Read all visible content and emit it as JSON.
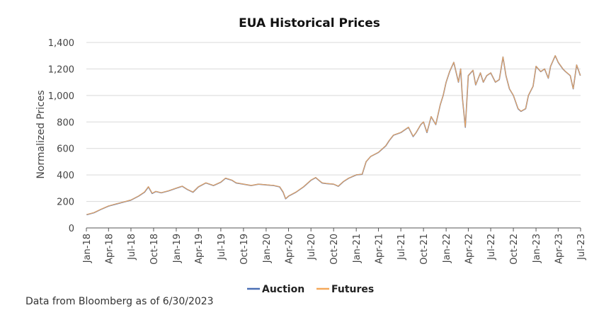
{
  "footnote": "Data from Bloomberg as of 6/30/2023",
  "colors": {
    "auction": "#4a6fb5",
    "futures": "#f5a85a",
    "grid": "#d9d9d9",
    "axis": "#555555"
  },
  "chart_data": {
    "type": "line",
    "title": "EUA Historical Prices",
    "xlabel": "",
    "ylabel": "Normalized Prices",
    "ylim": [
      0,
      1400
    ],
    "yticks": [
      "0",
      "200",
      "400",
      "600",
      "800",
      "1,000",
      "1,200",
      "1,400"
    ],
    "ytick_values": [
      0,
      200,
      400,
      600,
      800,
      1000,
      1200,
      1400
    ],
    "xticks": [
      "Jan-18",
      "Apr-18",
      "Jul-18",
      "Oct-18",
      "Jan-19",
      "Apr-19",
      "Jul-19",
      "Oct-19",
      "Jan-20",
      "Apr-20",
      "Jul-20",
      "Oct-20",
      "Jan-21",
      "Apr-21",
      "Jul-21",
      "Oct-21",
      "Jan-22",
      "Apr-22",
      "Jul-22",
      "Oct-22",
      "Jan-23",
      "Apr-23",
      "Jul-23"
    ],
    "xtick_dates": [
      "2018-01-01",
      "2018-04-01",
      "2018-07-01",
      "2018-10-01",
      "2019-01-01",
      "2019-04-01",
      "2019-07-01",
      "2019-10-01",
      "2020-01-01",
      "2020-04-01",
      "2020-07-01",
      "2020-10-01",
      "2021-01-01",
      "2021-04-01",
      "2021-07-01",
      "2021-10-01",
      "2022-01-01",
      "2022-04-01",
      "2022-07-01",
      "2022-10-01",
      "2023-01-01",
      "2023-04-01",
      "2023-07-01"
    ],
    "grid": true,
    "legend": "bottom",
    "x": [
      "2018-01-02",
      "2018-02-01",
      "2018-03-01",
      "2018-04-01",
      "2018-05-01",
      "2018-06-01",
      "2018-07-01",
      "2018-08-01",
      "2018-08-25",
      "2018-09-10",
      "2018-09-25",
      "2018-10-10",
      "2018-11-01",
      "2018-12-01",
      "2019-01-01",
      "2019-01-25",
      "2019-02-15",
      "2019-03-10",
      "2019-04-01",
      "2019-05-01",
      "2019-06-01",
      "2019-07-01",
      "2019-07-20",
      "2019-08-15",
      "2019-09-01",
      "2019-10-01",
      "2019-11-01",
      "2019-12-01",
      "2020-01-01",
      "2020-02-01",
      "2020-02-25",
      "2020-03-10",
      "2020-03-20",
      "2020-04-01",
      "2020-05-01",
      "2020-06-01",
      "2020-07-01",
      "2020-07-20",
      "2020-08-15",
      "2020-09-01",
      "2020-10-01",
      "2020-10-20",
      "2020-11-10",
      "2020-12-01",
      "2021-01-01",
      "2021-01-25",
      "2021-02-10",
      "2021-03-01",
      "2021-04-01",
      "2021-05-01",
      "2021-05-15",
      "2021-06-01",
      "2021-07-01",
      "2021-08-01",
      "2021-08-20",
      "2021-09-01",
      "2021-09-20",
      "2021-10-01",
      "2021-10-15",
      "2021-11-01",
      "2021-11-20",
      "2021-12-08",
      "2021-12-20",
      "2022-01-01",
      "2022-01-15",
      "2022-02-01",
      "2022-02-20",
      "2022-03-01",
      "2022-03-08",
      "2022-03-20",
      "2022-04-01",
      "2022-04-20",
      "2022-05-01",
      "2022-05-20",
      "2022-06-01",
      "2022-06-15",
      "2022-07-01",
      "2022-07-20",
      "2022-08-05",
      "2022-08-20",
      "2022-09-01",
      "2022-09-15",
      "2022-10-01",
      "2022-10-20",
      "2022-11-01",
      "2022-11-20",
      "2022-12-01",
      "2022-12-20",
      "2023-01-01",
      "2023-01-20",
      "2023-02-05",
      "2023-02-20",
      "2023-03-01",
      "2023-03-20",
      "2023-04-01",
      "2023-04-20",
      "2023-05-01",
      "2023-05-20",
      "2023-06-01",
      "2023-06-15",
      "2023-06-30"
    ],
    "series": [
      {
        "name": "Auction",
        "values": [
          100,
          115,
          140,
          165,
          180,
          195,
          210,
          240,
          270,
          310,
          260,
          275,
          265,
          280,
          300,
          315,
          290,
          270,
          310,
          340,
          320,
          345,
          375,
          360,
          340,
          330,
          320,
          330,
          325,
          320,
          310,
          270,
          220,
          240,
          270,
          310,
          360,
          380,
          340,
          335,
          330,
          315,
          350,
          375,
          400,
          405,
          500,
          540,
          570,
          620,
          660,
          700,
          720,
          760,
          690,
          720,
          780,
          800,
          720,
          840,
          780,
          930,
          1000,
          1100,
          1180,
          1250,
          1100,
          1200,
          980,
          760,
          1150,
          1190,
          1080,
          1170,
          1100,
          1150,
          1170,
          1100,
          1120,
          1290,
          1150,
          1050,
          1000,
          900,
          880,
          900,
          1000,
          1070,
          1220,
          1180,
          1200,
          1130,
          1220,
          1300,
          1250,
          1200,
          1180,
          1150,
          1050,
          1230,
          1150
        ]
      },
      {
        "name": "Futures",
        "values": [
          101,
          116,
          141,
          166,
          181,
          196,
          211,
          241,
          272,
          312,
          262,
          276,
          266,
          281,
          301,
          316,
          291,
          271,
          311,
          341,
          321,
          346,
          376,
          361,
          341,
          331,
          321,
          331,
          326,
          321,
          311,
          272,
          222,
          241,
          271,
          311,
          361,
          381,
          341,
          336,
          331,
          316,
          351,
          376,
          401,
          406,
          501,
          541,
          571,
          621,
          661,
          701,
          721,
          761,
          692,
          721,
          781,
          801,
          722,
          841,
          781,
          931,
          1001,
          1101,
          1181,
          1251,
          1102,
          1201,
          982,
          762,
          1151,
          1191,
          1081,
          1171,
          1101,
          1151,
          1171,
          1101,
          1121,
          1291,
          1151,
          1051,
          1001,
          902,
          881,
          901,
          1001,
          1071,
          1221,
          1181,
          1201,
          1131,
          1221,
          1301,
          1251,
          1201,
          1181,
          1151,
          1051,
          1231,
          1151
        ]
      }
    ]
  }
}
